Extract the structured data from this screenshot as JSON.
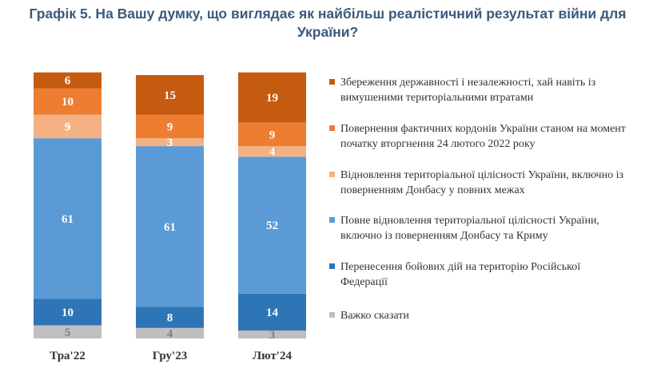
{
  "chart_data": {
    "type": "bar",
    "stacked": true,
    "title": "Графік 5. На Вашу думку, що виглядає як найбільш реалістичний результат війни для України?",
    "categories": [
      "Тра'22",
      "Гру'23",
      "Лют'24"
    ],
    "series": [
      {
        "name": "Важко сказати",
        "color": "#bfbfbf",
        "values": [
          5,
          4,
          3
        ]
      },
      {
        "name": "Перенесення бойових дій на територію Російської Федерації",
        "color": "#2e75b6",
        "values": [
          10,
          8,
          14
        ]
      },
      {
        "name": "Повне відновлення територіальної цілісності України, включно із поверненням Донбасу та Криму",
        "color": "#5b9bd5",
        "values": [
          61,
          61,
          52
        ]
      },
      {
        "name": "Відновлення територіальної цілісності України, включно із поверненням Донбасу у повних межах",
        "color": "#f4b183",
        "values": [
          9,
          3,
          4
        ]
      },
      {
        "name": "Повернення фактичних кордонів України станом на момент початку вторгнення 24 лютого 2022 року",
        "color": "#ed7d31",
        "values": [
          10,
          9,
          9
        ]
      },
      {
        "name": "Збереження державності і незалежності, хай навіть із вимушеними територіальними втратами",
        "color": "#c55a11",
        "values": [
          6,
          15,
          19
        ]
      }
    ],
    "legend_position": "right",
    "grid": false
  }
}
